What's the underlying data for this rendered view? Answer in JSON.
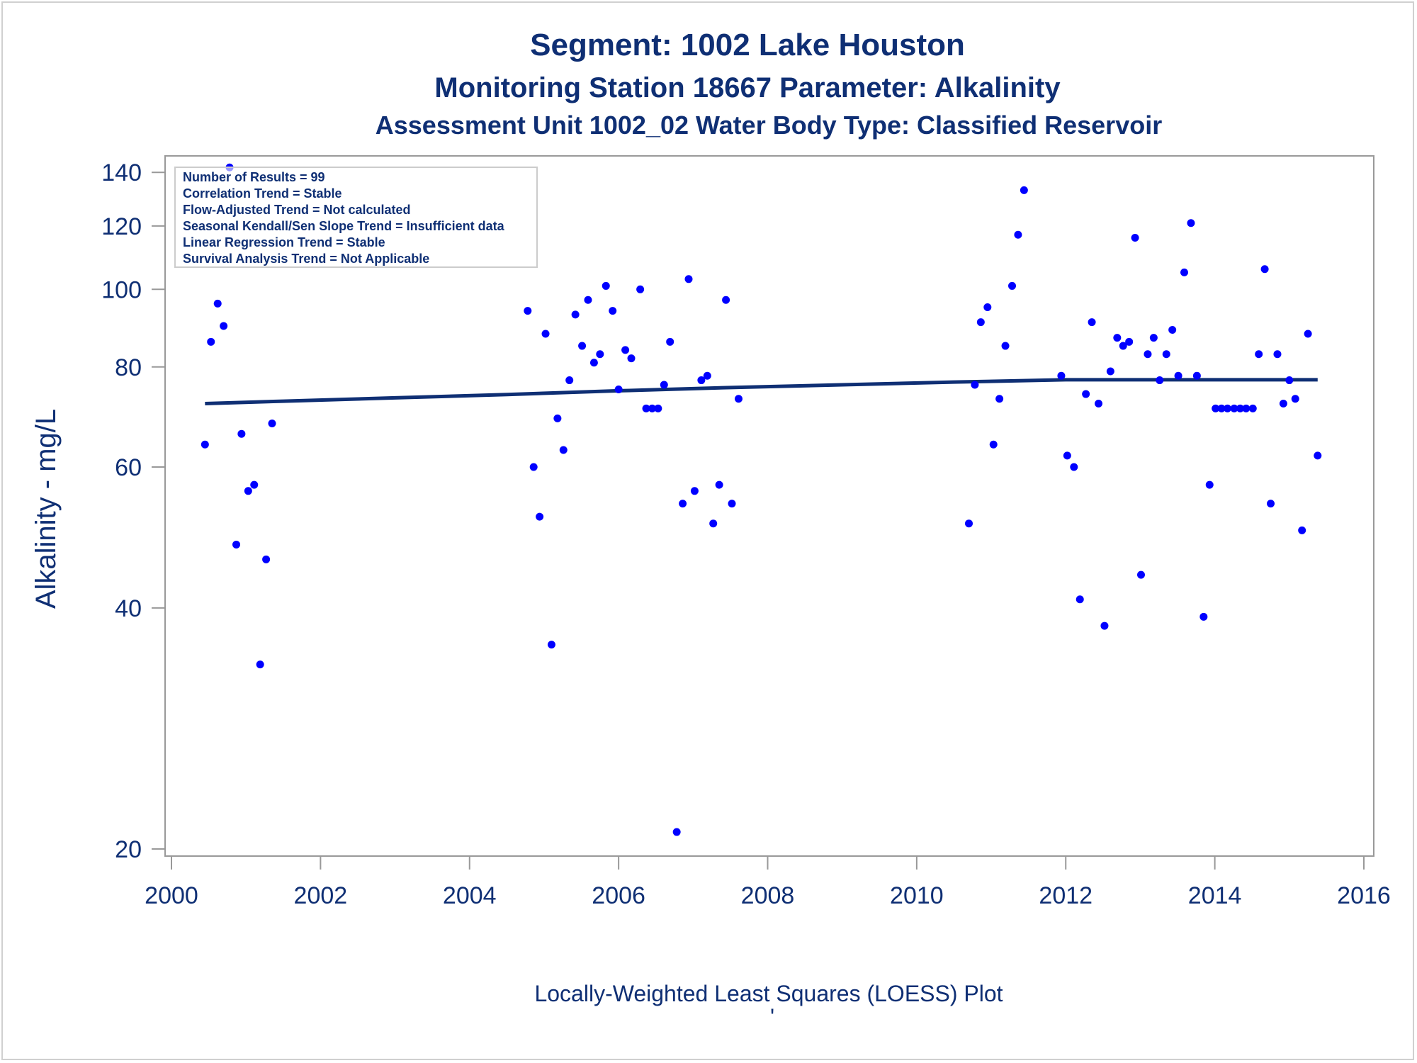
{
  "chart_data": {
    "type": "scatter",
    "title": "Segment: 1002  Lake Houston",
    "subtitle1": "Monitoring Station 18667 Parameter: Alkalinity",
    "subtitle2": "Assessment Unit 1002_02   Water Body Type: Classified Reservoir",
    "xlabel": "Locally-Weighted Least Squares (LOESS) Plot",
    "footnote": "'",
    "ylabel": "Alkalinity - mg/L",
    "y_scale": "log",
    "xlim": [
      2000,
      2016
    ],
    "ylim": [
      20,
      145
    ],
    "x_ticks": [
      2000,
      2002,
      2004,
      2006,
      2008,
      2010,
      2012,
      2014,
      2016
    ],
    "y_ticks": [
      20,
      40,
      60,
      80,
      100,
      120,
      140
    ],
    "grid": false,
    "colors": {
      "points": "#0000ff",
      "trend": "#0f2f74",
      "text": "#0f2f74",
      "axis": "#999999"
    },
    "inset": [
      "Number of Results = 99",
      "Correlation Trend = Stable",
      "Flow-Adjusted Trend = Not calculated",
      "Seasonal Kendall/Sen Slope Trend = Insufficient data",
      "Linear Regression Trend = Stable",
      "Survival Analysis Trend = Not Applicable"
    ],
    "series": [
      {
        "type": "scatter",
        "points": [
          [
            2000.45,
            64
          ],
          [
            2000.53,
            86
          ],
          [
            2000.62,
            96
          ],
          [
            2000.7,
            90
          ],
          [
            2000.78,
            142
          ],
          [
            2000.87,
            48
          ],
          [
            2000.94,
            66
          ],
          [
            2001.03,
            56
          ],
          [
            2001.11,
            57
          ],
          [
            2001.19,
            34
          ],
          [
            2001.27,
            46
          ],
          [
            2001.35,
            68
          ],
          [
            2004.78,
            94
          ],
          [
            2004.86,
            60
          ],
          [
            2004.94,
            52
          ],
          [
            2005.02,
            88
          ],
          [
            2005.1,
            36
          ],
          [
            2005.18,
            69
          ],
          [
            2005.26,
            63
          ],
          [
            2005.34,
            77
          ],
          [
            2005.42,
            93
          ],
          [
            2005.51,
            85
          ],
          [
            2005.59,
            97
          ],
          [
            2005.67,
            81
          ],
          [
            2005.75,
            83
          ],
          [
            2005.83,
            101
          ],
          [
            2005.92,
            94
          ],
          [
            2006.0,
            75
          ],
          [
            2006.09,
            84
          ],
          [
            2006.17,
            82
          ],
          [
            2006.29,
            100
          ],
          [
            2006.37,
            71
          ],
          [
            2006.45,
            71
          ],
          [
            2006.53,
            71
          ],
          [
            2006.61,
            76
          ],
          [
            2006.69,
            86
          ],
          [
            2006.78,
            21
          ],
          [
            2006.86,
            54
          ],
          [
            2006.94,
            103
          ],
          [
            2007.02,
            56
          ],
          [
            2007.11,
            77
          ],
          [
            2007.19,
            78
          ],
          [
            2007.27,
            51
          ],
          [
            2007.35,
            57
          ],
          [
            2007.44,
            97
          ],
          [
            2007.52,
            54
          ],
          [
            2007.61,
            73
          ],
          [
            2010.7,
            51
          ],
          [
            2010.78,
            76
          ],
          [
            2010.86,
            91
          ],
          [
            2010.95,
            95
          ],
          [
            2011.03,
            64
          ],
          [
            2011.11,
            73
          ],
          [
            2011.19,
            85
          ],
          [
            2011.28,
            101
          ],
          [
            2011.36,
            117
          ],
          [
            2011.44,
            133
          ],
          [
            2011.94,
            78
          ],
          [
            2012.02,
            62
          ],
          [
            2012.11,
            60
          ],
          [
            2012.19,
            41
          ],
          [
            2012.27,
            74
          ],
          [
            2012.35,
            91
          ],
          [
            2012.44,
            72
          ],
          [
            2012.52,
            38
          ],
          [
            2012.6,
            79
          ],
          [
            2012.69,
            87
          ],
          [
            2012.77,
            85
          ],
          [
            2012.85,
            86
          ],
          [
            2012.93,
            116
          ],
          [
            2013.01,
            44
          ],
          [
            2013.1,
            83
          ],
          [
            2013.18,
            87
          ],
          [
            2013.26,
            77
          ],
          [
            2013.35,
            83
          ],
          [
            2013.43,
            89
          ],
          [
            2013.51,
            78
          ],
          [
            2013.59,
            105
          ],
          [
            2013.68,
            121
          ],
          [
            2013.76,
            78
          ],
          [
            2013.85,
            39
          ],
          [
            2013.93,
            57
          ],
          [
            2014.01,
            71
          ],
          [
            2014.09,
            71
          ],
          [
            2014.17,
            71
          ],
          [
            2014.26,
            71
          ],
          [
            2014.34,
            71
          ],
          [
            2014.42,
            71
          ],
          [
            2014.51,
            71
          ],
          [
            2014.59,
            83
          ],
          [
            2014.67,
            106
          ],
          [
            2014.75,
            54
          ],
          [
            2014.84,
            83
          ],
          [
            2014.92,
            72
          ],
          [
            2015.0,
            77
          ],
          [
            2015.08,
            73
          ],
          [
            2015.17,
            50
          ],
          [
            2015.25,
            88
          ],
          [
            2015.38,
            62
          ]
        ]
      },
      {
        "type": "line",
        "points": [
          [
            2000.45,
            72.0
          ],
          [
            2001.5,
            72.5
          ],
          [
            2003.0,
            73.2
          ],
          [
            2004.5,
            73.9
          ],
          [
            2006.0,
            74.7
          ],
          [
            2007.5,
            75.4
          ],
          [
            2009.0,
            76.0
          ],
          [
            2010.5,
            76.6
          ],
          [
            2012.0,
            77.1
          ],
          [
            2013.5,
            77.1
          ],
          [
            2015.38,
            77.1
          ]
        ]
      }
    ]
  }
}
